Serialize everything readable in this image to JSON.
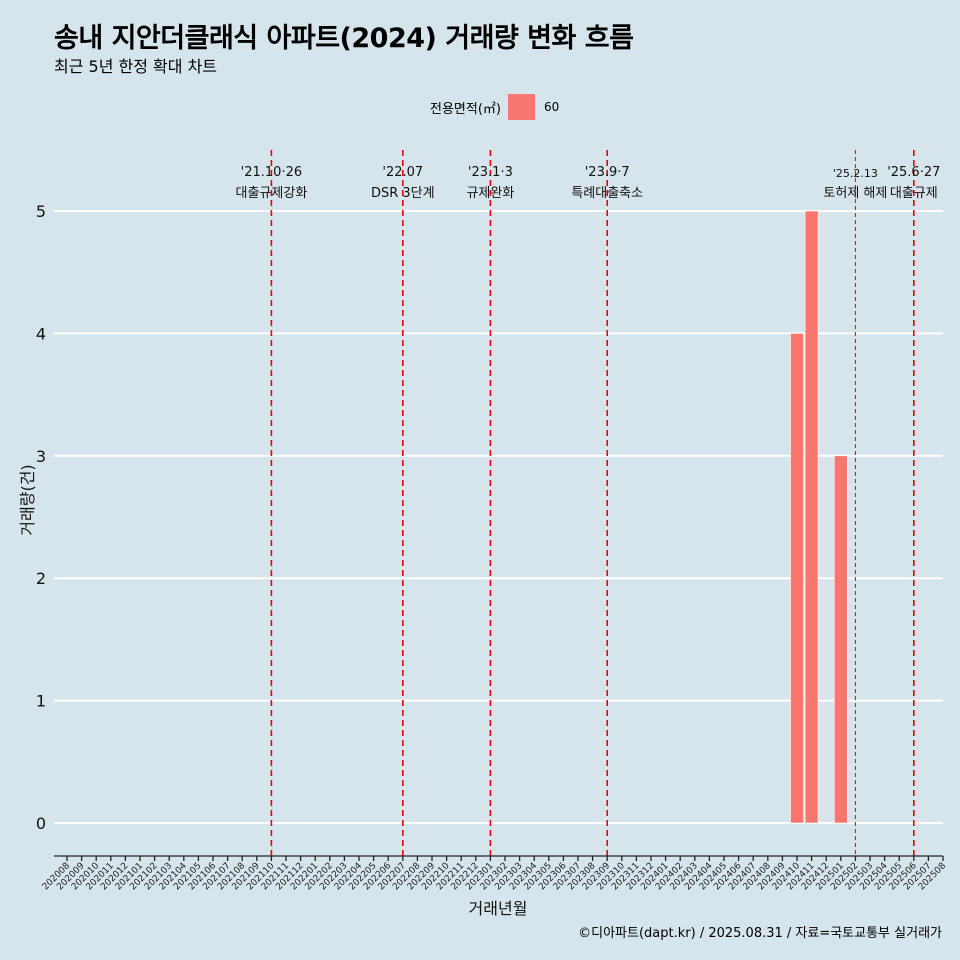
{
  "title": "송내 지안더클래식 아파트(2024) 거래량 변화 흐름",
  "subtitle": "최근 5년 한정 확대 차트",
  "caption": "©디아파트(dapt.kr) / 2025.08.31 / 자료=국토교통부 실거래가",
  "legend": {
    "title": "전용면적(㎡)",
    "items": [
      {
        "label": "60",
        "color": "#f8766d"
      }
    ]
  },
  "colors": {
    "background": "#d6e4ec",
    "bar": "#f8766d",
    "event_line": "#ee0000",
    "grid": "#ffffff"
  },
  "chart_data": {
    "type": "bar",
    "xlabel": "거래년월",
    "ylabel": "거래량(건)",
    "ylim": [
      0,
      5
    ],
    "yticks": [
      0,
      1,
      2,
      3,
      4,
      5
    ],
    "categories": [
      "202008",
      "202009",
      "202010",
      "202011",
      "202012",
      "202101",
      "202102",
      "202103",
      "202104",
      "202105",
      "202106",
      "202107",
      "202108",
      "202109",
      "202110",
      "202111",
      "202112",
      "202201",
      "202202",
      "202203",
      "202204",
      "202205",
      "202206",
      "202207",
      "202208",
      "202209",
      "202210",
      "202211",
      "202212",
      "202301",
      "202302",
      "202303",
      "202304",
      "202305",
      "202306",
      "202307",
      "202308",
      "202309",
      "202310",
      "202311",
      "202312",
      "202401",
      "202402",
      "202403",
      "202404",
      "202405",
      "202406",
      "202407",
      "202408",
      "202409",
      "202410",
      "202411",
      "202412",
      "202501",
      "202502",
      "202503",
      "202504",
      "202505",
      "202506",
      "202507",
      "202508"
    ],
    "series": [
      {
        "name": "60",
        "color": "#f8766d",
        "points": [
          {
            "x": "202410",
            "y": 4
          },
          {
            "x": "202411",
            "y": 5
          },
          {
            "x": "202501",
            "y": 3
          }
        ]
      }
    ],
    "events": [
      {
        "x": "202110",
        "date": "'21.10·26",
        "label": "대출규제강화",
        "style": "major"
      },
      {
        "x": "202207",
        "date": "'22.07",
        "label": "DSR 3단계",
        "style": "major"
      },
      {
        "x": "202301",
        "date": "'23.1·3",
        "label": "규제완화",
        "style": "major"
      },
      {
        "x": "202309",
        "date": "'23.9·7",
        "label": "특례대출축소",
        "style": "major"
      },
      {
        "x": "202502",
        "date": "'25.2.13",
        "label": "토허제 해제",
        "style": "minor"
      },
      {
        "x": "202506",
        "date": "'25.6·27",
        "label": "대출규제",
        "style": "major"
      }
    ]
  }
}
